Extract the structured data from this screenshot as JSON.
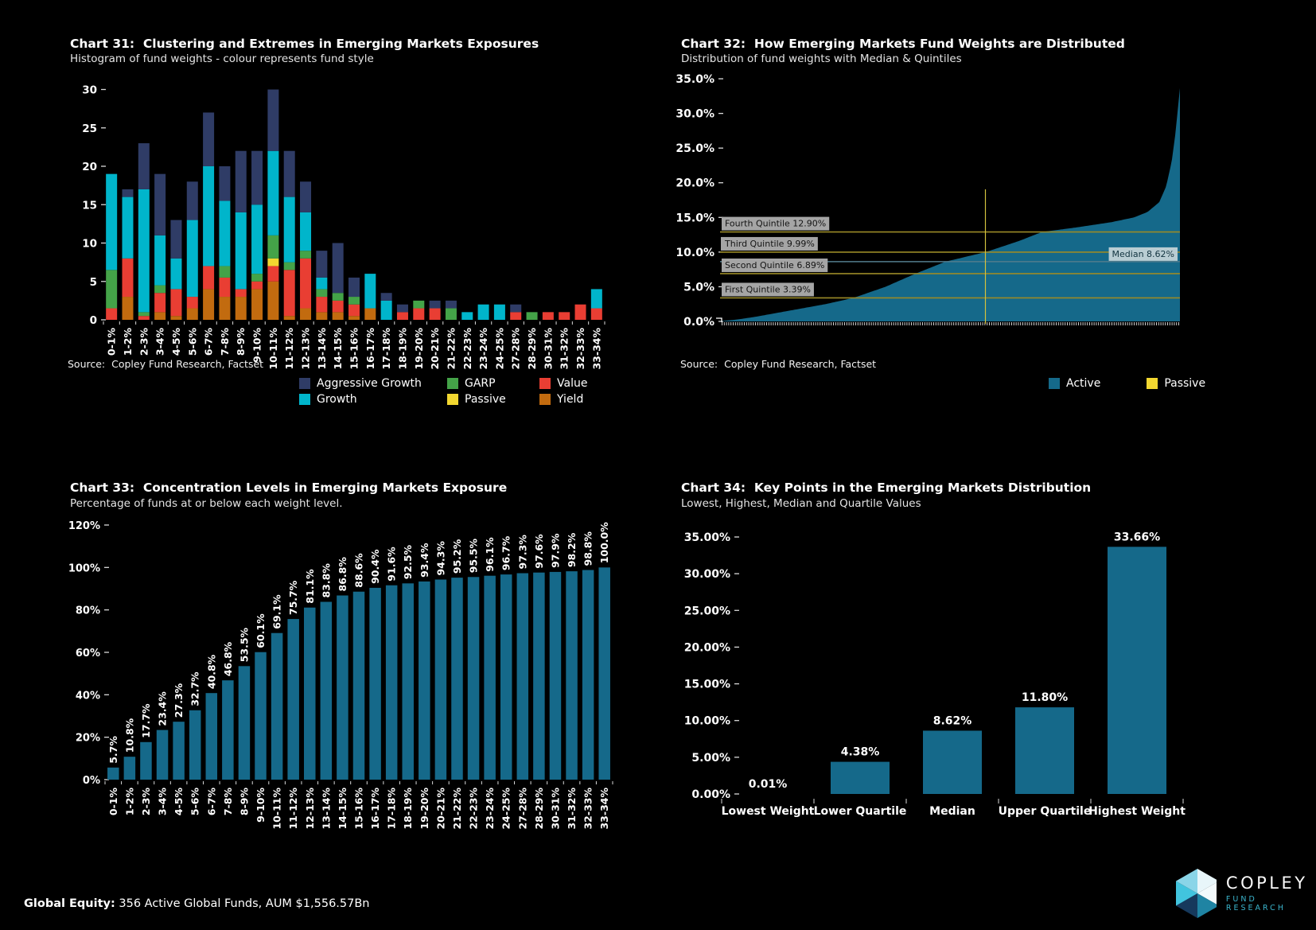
{
  "page": {
    "background": "#000000"
  },
  "chart_data": [
    {
      "id": "chart31",
      "type": "bar",
      "stacked": true,
      "title": "Chart 31:  Clustering and Extremes in Emerging Markets Exposures",
      "subtitle": "Histogram of fund weights - colour represents fund style",
      "source": "Source:  Copley Fund Research, Factset",
      "ylim": [
        0,
        30
      ],
      "yticks": [
        [
          0,
          "0"
        ],
        [
          5,
          "5"
        ],
        [
          10,
          "10"
        ],
        [
          15,
          "15"
        ],
        [
          20,
          "20"
        ],
        [
          25,
          "25"
        ],
        [
          30,
          "30"
        ]
      ],
      "categories": [
        "0-1%",
        "1-2%",
        "2-3%",
        "3-4%",
        "4-5%",
        "5-6%",
        "6-7%",
        "7-8%",
        "8-9%",
        "9-10%",
        "10-11%",
        "11-12%",
        "12-13%",
        "13-14%",
        "14-15%",
        "15-16%",
        "16-17%",
        "17-18%",
        "18-19%",
        "19-20%",
        "20-21%",
        "21-22%",
        "22-23%",
        "23-24%",
        "24-25%",
        "27-28%",
        "28-29%",
        "30-31%",
        "31-32%",
        "32-33%",
        "33-34%"
      ],
      "series": [
        {
          "name": "Yield",
          "color": "#c26b0f",
          "values": [
            0,
            3,
            0,
            1,
            0.5,
            1.5,
            4,
            3,
            3,
            4,
            5,
            0.5,
            1.5,
            1,
            1,
            0.5,
            1.5,
            0,
            0,
            0,
            0,
            0,
            0,
            0,
            0,
            0,
            0,
            0,
            0,
            0,
            0
          ]
        },
        {
          "name": "Value",
          "color": "#e93e33",
          "values": [
            1.5,
            5,
            0.5,
            2.5,
            3.5,
            1.5,
            3,
            2.5,
            1,
            1,
            2,
            6,
            6.5,
            2,
            1.5,
            1.5,
            0,
            0,
            1,
            1.5,
            1.5,
            0,
            0,
            0,
            0,
            1,
            0,
            1,
            1,
            2,
            1.5
          ]
        },
        {
          "name": "Passive",
          "color": "#f2d730",
          "values": [
            0,
            0,
            0,
            0,
            0,
            0,
            0,
            0,
            0,
            0,
            1,
            0,
            0,
            0,
            0,
            0,
            0,
            0,
            0,
            0,
            0,
            0,
            0,
            0,
            0,
            0,
            0,
            0,
            0,
            0,
            0
          ]
        },
        {
          "name": "GARP",
          "color": "#44a348",
          "values": [
            5,
            0,
            0.5,
            1,
            0,
            0,
            0,
            1.5,
            0,
            1,
            3,
            1,
            1,
            1,
            1,
            1,
            0,
            0,
            0,
            1,
            0,
            1.5,
            0,
            0,
            0,
            0,
            1,
            0,
            0,
            0,
            0
          ]
        },
        {
          "name": "Growth",
          "color": "#00b5cb",
          "values": [
            12.5,
            8,
            16,
            6.5,
            4,
            10,
            13,
            8.5,
            10,
            9,
            11,
            8.5,
            5,
            1.5,
            0,
            0,
            4.5,
            2.5,
            0,
            0,
            0,
            0,
            1,
            2,
            2,
            0,
            0,
            0,
            0,
            0,
            2.5
          ]
        },
        {
          "name": "Aggressive Growth",
          "color": "#2f3c66",
          "values": [
            0,
            1,
            6,
            8,
            5,
            5,
            7,
            4.5,
            8,
            7,
            8,
            6,
            4,
            3.5,
            6.5,
            2.5,
            0,
            1,
            1,
            0,
            1,
            1,
            0,
            0,
            0,
            1,
            0,
            0,
            0,
            0,
            0
          ]
        }
      ],
      "legend": [
        {
          "label": "Aggressive Growth",
          "color": "#2f3c66"
        },
        {
          "label": "GARP",
          "color": "#44a348"
        },
        {
          "label": "Value",
          "color": "#e93e33"
        },
        {
          "label": "Growth",
          "color": "#00b5cb"
        },
        {
          "label": "Passive",
          "color": "#f2d730"
        },
        {
          "label": "Yield",
          "color": "#c26b0f"
        }
      ]
    },
    {
      "id": "chart32",
      "type": "area",
      "title": "Chart 32:  How Emerging Markets Fund Weights are Distributed",
      "subtitle": "Distribution of fund weights with Median & Quintiles",
      "source": "Source:  Copley Fund Research, Factset",
      "ylim": [
        0,
        35
      ],
      "yticks": [
        [
          0,
          "0.0%"
        ],
        [
          5,
          "5.0%"
        ],
        [
          10,
          "10.0%"
        ],
        [
          15,
          "15.0%"
        ],
        [
          20,
          "20.0%"
        ],
        [
          25,
          "25.0%"
        ],
        [
          30,
          "30.0%"
        ],
        [
          35,
          "35.0%"
        ]
      ],
      "area_color": "#15698a",
      "x_description": "Funds sorted ascending by Emerging Markets weight",
      "curve_percentiles": [
        [
          0,
          0.01
        ],
        [
          0.04,
          0.3
        ],
        [
          0.08,
          0.7
        ],
        [
          0.13,
          1.3
        ],
        [
          0.18,
          1.9
        ],
        [
          0.23,
          2.5
        ],
        [
          0.29,
          3.39
        ],
        [
          0.36,
          5.0
        ],
        [
          0.425,
          6.89
        ],
        [
          0.49,
          8.62
        ],
        [
          0.577,
          9.99
        ],
        [
          0.65,
          11.6
        ],
        [
          0.7,
          12.9
        ],
        [
          0.78,
          13.6
        ],
        [
          0.85,
          14.3
        ],
        [
          0.9,
          15.0
        ],
        [
          0.93,
          15.8
        ],
        [
          0.955,
          17.2
        ],
        [
          0.97,
          19.5
        ],
        [
          0.982,
          23.0
        ],
        [
          0.99,
          27.0
        ],
        [
          0.996,
          31.0
        ],
        [
          1.0,
          33.66
        ]
      ],
      "quintiles": [
        {
          "label": "Fourth Quintile 12.90%",
          "value": 12.9
        },
        {
          "label": "Third Quintile 9.99%",
          "value": 9.99
        },
        {
          "label": "Second Quintile 6.89%",
          "value": 6.89
        },
        {
          "label": "First Quintile 3.39%",
          "value": 3.39
        }
      ],
      "median": {
        "label": "Median 8.62%",
        "value": 8.62
      },
      "vline_percentile": 0.577,
      "line_colors": {
        "quintile": "#9a8a27",
        "median": "#527c8d",
        "vline": "#d3c23d"
      },
      "label_colors": {
        "quintile_bg": "#a5a5a5",
        "quintile_text": "#141414",
        "median_bg": "#b9cdd3",
        "median_text": "#12333f"
      },
      "legend": [
        {
          "label": "Active",
          "color": "#15698a"
        },
        {
          "label": "Passive",
          "color": "#f2d730"
        }
      ]
    },
    {
      "id": "chart33",
      "type": "bar",
      "title": "Chart 33:  Concentration Levels in Emerging Markets Exposure",
      "subtitle": "Percentage of funds at or below each weight level.",
      "ylim": [
        0,
        120
      ],
      "yticks": [
        [
          0,
          "0%"
        ],
        [
          20,
          "20%"
        ],
        [
          40,
          "40%"
        ],
        [
          60,
          "60%"
        ],
        [
          80,
          "80%"
        ],
        [
          100,
          "100%"
        ],
        [
          120,
          "120%"
        ]
      ],
      "categories": [
        "0-1%",
        "1-2%",
        "2-3%",
        "3-4%",
        "4-5%",
        "5-6%",
        "6-7%",
        "7-8%",
        "8-9%",
        "9-10%",
        "10-11%",
        "11-12%",
        "12-13%",
        "13-14%",
        "14-15%",
        "15-16%",
        "16-17%",
        "17-18%",
        "18-19%",
        "19-20%",
        "20-21%",
        "21-22%",
        "22-23%",
        "23-24%",
        "24-25%",
        "27-28%",
        "28-29%",
        "30-31%",
        "31-32%",
        "32-33%",
        "33-34%"
      ],
      "values": [
        5.7,
        10.8,
        17.7,
        23.4,
        27.3,
        32.7,
        40.8,
        46.8,
        53.5,
        60.1,
        69.1,
        75.7,
        81.1,
        83.8,
        86.8,
        88.6,
        90.4,
        91.6,
        92.5,
        93.4,
        94.3,
        95.2,
        95.5,
        96.1,
        96.7,
        97.3,
        97.6,
        97.9,
        98.2,
        98.8,
        100.0
      ],
      "value_labels": [
        "5.7%",
        "10.8%",
        "17.7%",
        "23.4%",
        "27.3%",
        "32.7%",
        "40.8%",
        "46.8%",
        "53.5%",
        "60.1%",
        "69.1%",
        "75.7%",
        "81.1%",
        "83.8%",
        "86.8%",
        "88.6%",
        "90.4%",
        "91.6%",
        "92.5%",
        "93.4%",
        "94.3%",
        "95.2%",
        "95.5%",
        "96.1%",
        "96.7%",
        "97.3%",
        "97.6%",
        "97.9%",
        "98.2%",
        "98.8%",
        "100.0%"
      ],
      "bar_color": "#15698a"
    },
    {
      "id": "chart34",
      "type": "bar",
      "title": "Chart 34:  Key Points in the Emerging Markets Distribution",
      "subtitle": "Lowest, Highest, Median and Quartile Values",
      "ylim": [
        0,
        35
      ],
      "yticks": [
        [
          0,
          "0.00%"
        ],
        [
          5,
          "5.00%"
        ],
        [
          10,
          "10.00%"
        ],
        [
          15,
          "15.00%"
        ],
        [
          20,
          "20.00%"
        ],
        [
          25,
          "25.00%"
        ],
        [
          30,
          "30.00%"
        ],
        [
          35,
          "35.00%"
        ]
      ],
      "categories": [
        "Lowest Weight",
        "Lower Quartile",
        "Median",
        "Upper Quartile",
        "Highest Weight"
      ],
      "values": [
        0.01,
        4.38,
        8.62,
        11.8,
        33.66
      ],
      "value_labels": [
        "0.01%",
        "4.38%",
        "8.62%",
        "11.80%",
        "33.66%"
      ],
      "bar_color": "#15698a"
    }
  ],
  "footer": {
    "bold": "Global Equity:",
    "text": " 356 Active Global Funds, AUM $1,556.57Bn"
  },
  "logo": {
    "brand": "COPLEY",
    "tagline": "FUND RESEARCH",
    "hex_colors": [
      "#e8f6fa",
      "#f2fafc",
      "#1f84a3",
      "#16395c",
      "#41c4de",
      "#8ad5e8"
    ]
  }
}
